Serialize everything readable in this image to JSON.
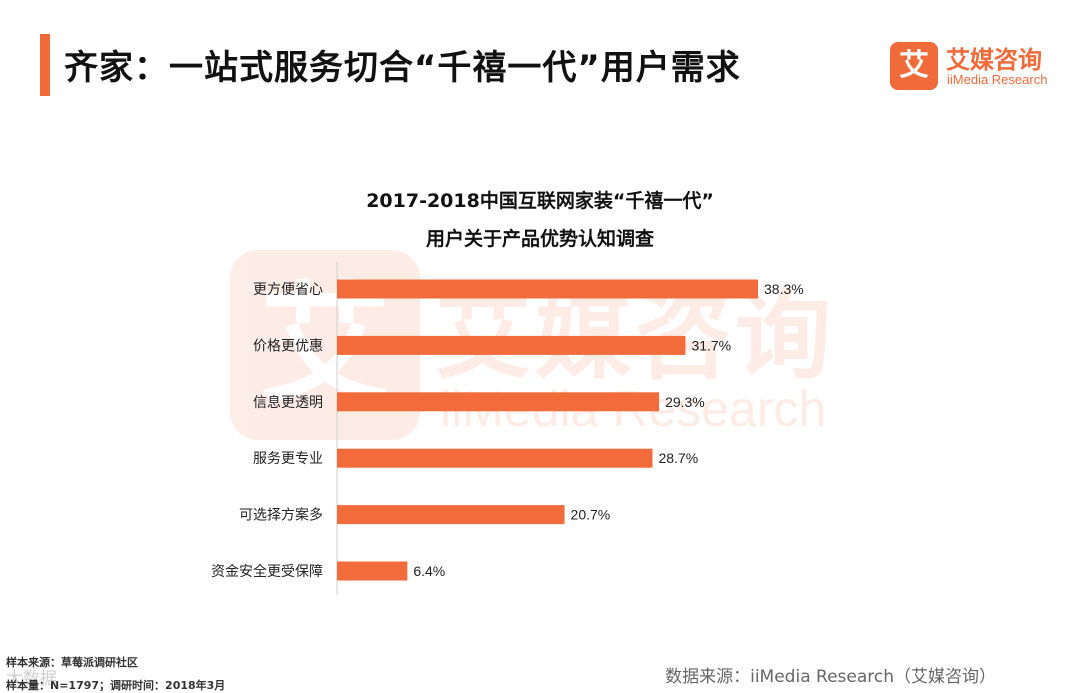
{
  "page_title": "齐家：一站式服务切合“千禧一代”用户需求",
  "logo": {
    "mark": "艾",
    "name_cn": "艾媒咨询",
    "name_en": "iiMedia Research"
  },
  "chart_data": {
    "type": "bar",
    "orientation": "horizontal",
    "title_line1": "2017-2018中国互联网家装“千禧一代”",
    "title_line2": "用户关于产品优势认知调查",
    "categories": [
      "更方便省心",
      "价格更优惠",
      "信息更透明",
      "服务更专业",
      "可选择方案多",
      "资金安全更受保障"
    ],
    "values": [
      38.3,
      31.7,
      29.3,
      28.7,
      20.7,
      6.4
    ],
    "value_labels": [
      "38.3%",
      "31.7%",
      "29.3%",
      "28.7%",
      "20.7%",
      "6.4%"
    ],
    "xlim": [
      0,
      40
    ],
    "bar_color": "#f26b3a",
    "grid": false
  },
  "footer": {
    "sample_source": "样本来源：草莓派调研社区",
    "sample_info": "样本量：N=1797；调研时间：2018年3月",
    "data_source": "数据来源：iiMedia Research（艾媒咨询）",
    "watermark_text": "大数据"
  }
}
